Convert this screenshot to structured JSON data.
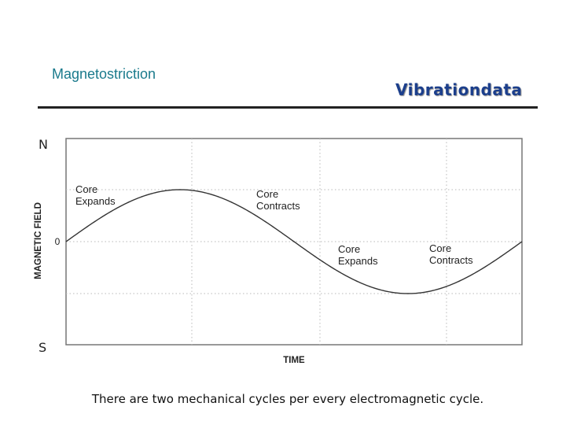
{
  "header": {
    "title": "Magnetostriction",
    "brand": "Vibrationdata"
  },
  "poles": {
    "north": "N",
    "south": "S"
  },
  "diagram": {
    "y_axis_label": "MAGNETIC FIELD",
    "x_axis_label": "TIME",
    "zero_label": "0",
    "annotations": [
      {
        "line1": "Core",
        "line2": "Expands"
      },
      {
        "line1": "Core",
        "line2": "Contracts"
      },
      {
        "line1": "Core",
        "line2": "Expands"
      },
      {
        "line1": "Core",
        "line2": "Contracts"
      }
    ],
    "curve_cycles": 1,
    "grid": true
  },
  "caption": "There are two mechanical cycles per every electromagnetic cycle.",
  "colors": {
    "title": "#1a7a8c",
    "brand": "#1c3f8c",
    "curve": "#333333",
    "grid": "#b8b8b8"
  }
}
